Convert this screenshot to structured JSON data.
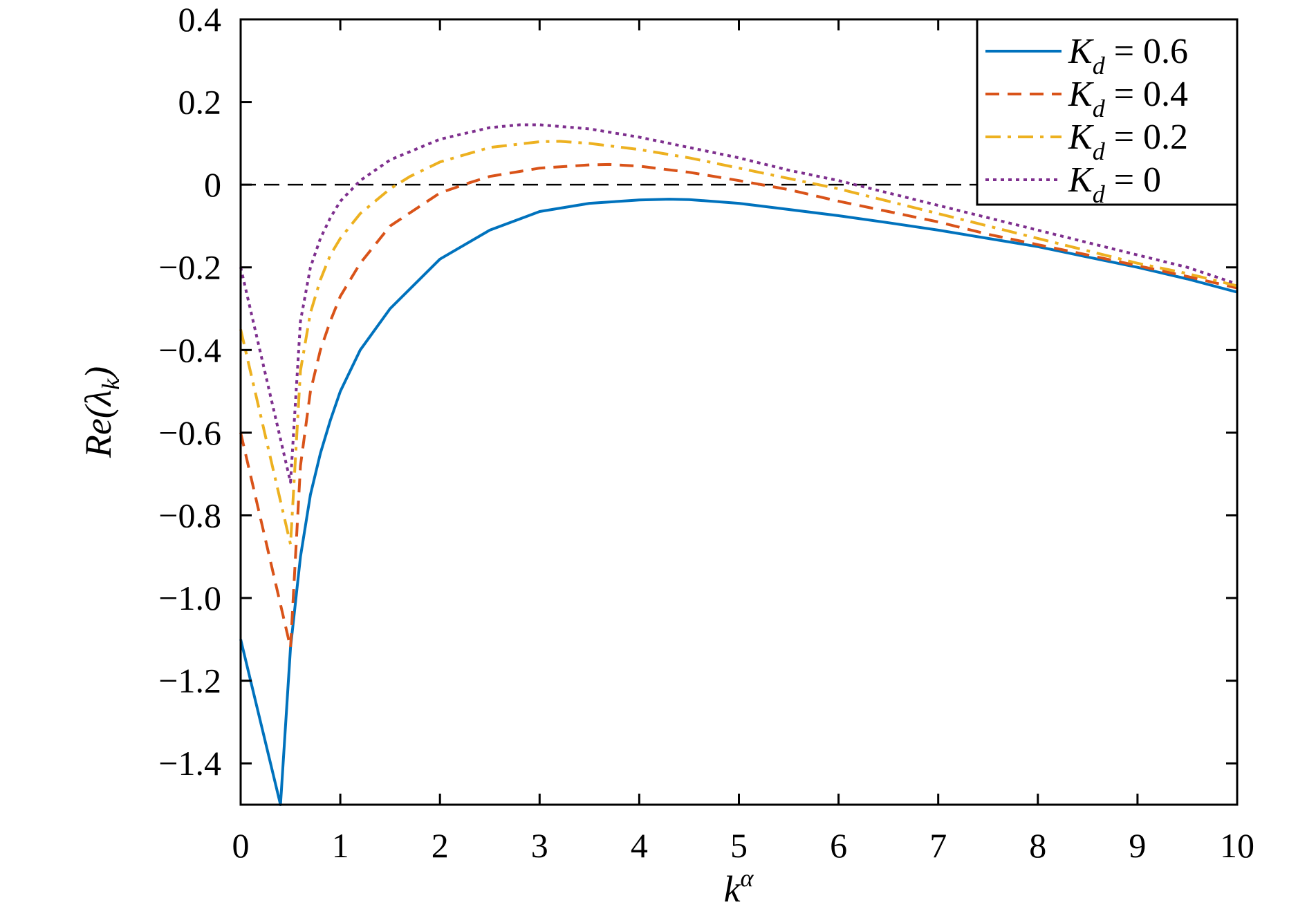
{
  "chart_data": {
    "type": "line",
    "xlabel": {
      "base": "k",
      "sup": "α"
    },
    "ylabel": {
      "prefix": "Re(",
      "symbol": "λ",
      "sub": "k",
      "suffix": ")"
    },
    "xlim": [
      0,
      10
    ],
    "ylim": [
      -1.5,
      0.4
    ],
    "xticks": [
      {
        "v": 0,
        "label": "0"
      },
      {
        "v": 1,
        "label": "1"
      },
      {
        "v": 2,
        "label": "2"
      },
      {
        "v": 3,
        "label": "3"
      },
      {
        "v": 4,
        "label": "4"
      },
      {
        "v": 5,
        "label": "5"
      },
      {
        "v": 6,
        "label": "6"
      },
      {
        "v": 7,
        "label": "7"
      },
      {
        "v": 8,
        "label": "8"
      },
      {
        "v": 9,
        "label": "9"
      },
      {
        "v": 10,
        "label": "10"
      }
    ],
    "yticks": [
      {
        "v": 0.4,
        "label": "0.4"
      },
      {
        "v": 0.2,
        "label": "0.2"
      },
      {
        "v": 0,
        "label": "0"
      },
      {
        "v": -0.2,
        "label": "−0.2"
      },
      {
        "v": -0.4,
        "label": "−0.4"
      },
      {
        "v": -0.6,
        "label": "−0.6"
      },
      {
        "v": -0.8,
        "label": "−0.8"
      },
      {
        "v": -1.0,
        "label": "−1.0"
      },
      {
        "v": -1.2,
        "label": "−1.2"
      },
      {
        "v": -1.4,
        "label": "−1.4"
      }
    ],
    "reference_line": {
      "y": 0,
      "style": "dashed",
      "color": "#000000"
    },
    "legend_position": "top-right",
    "series": [
      {
        "legend": {
          "var": "K",
          "sub": "d",
          "rest": " = 0.6"
        },
        "color": "#0072BD",
        "dash": "solid",
        "x": [
          0,
          0.4,
          0.5,
          0.6,
          0.7,
          0.8,
          0.9,
          1.0,
          1.2,
          1.5,
          2.0,
          2.5,
          3.0,
          3.5,
          4.0,
          4.3,
          4.5,
          5.0,
          5.5,
          6.0,
          6.5,
          7.0,
          7.5,
          8.0,
          8.5,
          9.0,
          9.5,
          10.0
        ],
        "y": [
          -1.1,
          -1.5,
          -1.12,
          -0.9,
          -0.75,
          -0.65,
          -0.57,
          -0.5,
          -0.4,
          -0.3,
          -0.18,
          -0.11,
          -0.065,
          -0.045,
          -0.037,
          -0.035,
          -0.036,
          -0.045,
          -0.06,
          -0.075,
          -0.092,
          -0.11,
          -0.13,
          -0.15,
          -0.175,
          -0.2,
          -0.228,
          -0.26
        ]
      },
      {
        "legend": {
          "var": "K",
          "sub": "d",
          "rest": " = 0.4"
        },
        "color": "#D95319",
        "dash": "dashed",
        "x": [
          0,
          0.5,
          0.6,
          0.7,
          0.8,
          0.9,
          1.0,
          1.2,
          1.5,
          2.0,
          2.3,
          2.5,
          3.0,
          3.5,
          3.7,
          4.0,
          4.5,
          5.0,
          5.5,
          6.0,
          6.5,
          7.0,
          7.5,
          8.0,
          8.5,
          9.0,
          9.5,
          10.0
        ],
        "y": [
          -0.6,
          -1.12,
          -0.68,
          -0.5,
          -0.4,
          -0.33,
          -0.27,
          -0.19,
          -0.1,
          -0.02,
          0.005,
          0.02,
          0.04,
          0.048,
          0.049,
          0.045,
          0.03,
          0.01,
          -0.012,
          -0.04,
          -0.065,
          -0.09,
          -0.12,
          -0.145,
          -0.17,
          -0.196,
          -0.222,
          -0.25
        ]
      },
      {
        "legend": {
          "var": "K",
          "sub": "d",
          "rest": " = 0.2"
        },
        "color": "#EDB120",
        "dash": "dashdot",
        "x": [
          0,
          0.5,
          0.6,
          0.7,
          0.8,
          0.9,
          1.0,
          1.2,
          1.5,
          1.7,
          2.0,
          2.5,
          3.0,
          3.2,
          3.5,
          4.0,
          4.5,
          5.0,
          5.5,
          6.0,
          6.5,
          7.0,
          7.5,
          8.0,
          8.5,
          9.0,
          9.5,
          10.0
        ],
        "y": [
          -0.35,
          -0.87,
          -0.45,
          -0.31,
          -0.23,
          -0.17,
          -0.13,
          -0.07,
          -0.01,
          0.02,
          0.055,
          0.09,
          0.104,
          0.105,
          0.1,
          0.085,
          0.065,
          0.04,
          0.015,
          -0.01,
          -0.04,
          -0.07,
          -0.1,
          -0.13,
          -0.16,
          -0.19,
          -0.215,
          -0.245
        ]
      },
      {
        "legend": {
          "var": "K",
          "sub": "d",
          "rest": " = 0"
        },
        "color": "#7E2F8E",
        "dash": "dotted",
        "x": [
          0,
          0.5,
          0.6,
          0.7,
          0.8,
          0.9,
          1.0,
          1.2,
          1.5,
          2.0,
          2.5,
          2.8,
          3.0,
          3.5,
          4.0,
          4.5,
          5.0,
          5.5,
          6.0,
          6.5,
          7.0,
          7.5,
          8.0,
          8.5,
          9.0,
          9.5,
          10.0
        ],
        "y": [
          -0.2,
          -0.72,
          -0.33,
          -0.2,
          -0.13,
          -0.08,
          -0.04,
          0.01,
          0.06,
          0.11,
          0.138,
          0.145,
          0.145,
          0.135,
          0.115,
          0.09,
          0.065,
          0.035,
          0.01,
          -0.02,
          -0.05,
          -0.08,
          -0.11,
          -0.14,
          -0.17,
          -0.2,
          -0.24
        ]
      }
    ]
  }
}
